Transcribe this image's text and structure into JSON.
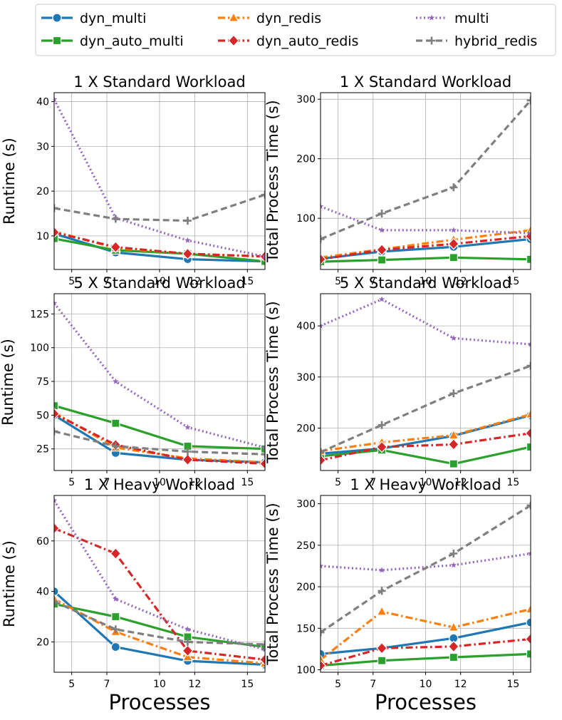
{
  "chart_data": [
    {
      "type": "line",
      "title": "1 X Standard Workload",
      "xlabel": "",
      "ylabel": "Runtime (s)",
      "xlim": [
        4,
        16
      ],
      "ylim": [
        2.5,
        42
      ],
      "xticks": [
        5,
        7,
        10,
        12,
        15
      ],
      "yticks": [
        10,
        20,
        30,
        40
      ],
      "x": [
        4,
        7.5,
        11.6,
        16
      ],
      "series": [
        {
          "name": "dyn_multi",
          "values": [
            10.5,
            6.3,
            4.8,
            4.3
          ]
        },
        {
          "name": "dyn_auto_multi",
          "values": [
            9.4,
            6.8,
            6.0,
            4.3
          ]
        },
        {
          "name": "dyn_redis",
          "values": [
            11.0,
            7.3,
            6.0,
            5.4
          ]
        },
        {
          "name": "dyn_auto_redis",
          "values": [
            10.8,
            7.5,
            6.0,
            5.4
          ]
        },
        {
          "name": "multi",
          "values": [
            40.5,
            14.0,
            9.0,
            5.4
          ]
        },
        {
          "name": "hybrid_redis",
          "values": [
            16.2,
            13.8,
            13.4,
            19.2
          ]
        }
      ]
    },
    {
      "type": "line",
      "title": "1 X Standard Workload",
      "xlabel": "",
      "ylabel": "Total Process Time (s)",
      "xlim": [
        4,
        16
      ],
      "ylim": [
        14,
        311
      ],
      "xticks": [
        5,
        7,
        10,
        12,
        15
      ],
      "yticks": [
        100,
        200,
        300
      ],
      "x": [
        4,
        7.5,
        11.6,
        16
      ],
      "series": [
        {
          "name": "dyn_multi",
          "values": [
            32,
            44,
            52,
            65
          ]
        },
        {
          "name": "dyn_auto_multi",
          "values": [
            27,
            30,
            34,
            31
          ]
        },
        {
          "name": "dyn_redis",
          "values": [
            34,
            48,
            64,
            80
          ]
        },
        {
          "name": "dyn_auto_redis",
          "values": [
            31,
            47,
            57,
            70
          ]
        },
        {
          "name": "multi",
          "values": [
            120,
            80,
            80,
            75
          ]
        },
        {
          "name": "hybrid_redis",
          "values": [
            65,
            108,
            152,
            298
          ]
        }
      ]
    },
    {
      "type": "line",
      "title": "5 X Standard Workload",
      "xlabel": "",
      "ylabel": "Runtime (s)",
      "xlim": [
        4,
        16
      ],
      "ylim": [
        9,
        140
      ],
      "xticks": [
        5,
        7,
        10,
        12,
        15
      ],
      "yticks": [
        25,
        50,
        75,
        100,
        125
      ],
      "x": [
        4,
        7.5,
        11.6,
        16
      ],
      "series": [
        {
          "name": "dyn_multi",
          "values": [
            50,
            22,
            17,
            15
          ]
        },
        {
          "name": "dyn_auto_multi",
          "values": [
            57,
            44,
            27,
            25
          ]
        },
        {
          "name": "dyn_redis",
          "values": [
            52,
            26,
            18,
            15
          ]
        },
        {
          "name": "dyn_auto_redis",
          "values": [
            51,
            28,
            17,
            14
          ]
        },
        {
          "name": "multi",
          "values": [
            133,
            75,
            41,
            26
          ]
        },
        {
          "name": "hybrid_redis",
          "values": [
            38,
            27,
            23,
            21
          ]
        }
      ]
    },
    {
      "type": "line",
      "title": "5 X Standard Workload",
      "xlabel": "",
      "ylabel": "Total Process Time (s)",
      "xlim": [
        4,
        16
      ],
      "ylim": [
        117,
        463
      ],
      "xticks": [
        5,
        7,
        10,
        12,
        15
      ],
      "yticks": [
        200,
        300,
        400
      ],
      "x": [
        4,
        7.5,
        11.6,
        16
      ],
      "series": [
        {
          "name": "dyn_multi",
          "values": [
            150,
            160,
            185,
            225
          ]
        },
        {
          "name": "dyn_auto_multi",
          "values": [
            145,
            157,
            130,
            163
          ]
        },
        {
          "name": "dyn_redis",
          "values": [
            155,
            172,
            186,
            227
          ]
        },
        {
          "name": "dyn_auto_redis",
          "values": [
            137,
            163,
            168,
            190
          ]
        },
        {
          "name": "multi",
          "values": [
            400,
            452,
            376,
            364
          ]
        },
        {
          "name": "hybrid_redis",
          "values": [
            153,
            206,
            268,
            322
          ]
        }
      ]
    },
    {
      "type": "line",
      "title": "1 X Heavy Workload",
      "xlabel": "Processes",
      "ylabel": "Runtime (s)",
      "xlim": [
        4,
        16
      ],
      "ylim": [
        8,
        78
      ],
      "xticks": [
        5,
        7,
        10,
        12,
        15
      ],
      "yticks": [
        20,
        40,
        60
      ],
      "x": [
        4,
        7.5,
        11.6,
        16
      ],
      "series": [
        {
          "name": "dyn_multi",
          "values": [
            40,
            18,
            12.5,
            11
          ]
        },
        {
          "name": "dyn_auto_multi",
          "values": [
            35,
            30,
            22,
            18
          ]
        },
        {
          "name": "dyn_redis",
          "values": [
            37,
            24,
            14,
            11.5
          ]
        },
        {
          "name": "dyn_auto_redis",
          "values": [
            65,
            55,
            16.5,
            13
          ]
        },
        {
          "name": "multi",
          "values": [
            76,
            37,
            25,
            17
          ]
        },
        {
          "name": "hybrid_redis",
          "values": [
            36,
            25,
            20,
            19
          ]
        }
      ]
    },
    {
      "type": "line",
      "title": "1 X Heavy Workload",
      "xlabel": "Processes",
      "ylabel": "Total Process Time (s)",
      "xlim": [
        4,
        16
      ],
      "ylim": [
        97,
        310
      ],
      "xticks": [
        5,
        7,
        10,
        12,
        15
      ],
      "yticks": [
        100,
        150,
        200,
        250,
        300
      ],
      "x": [
        4,
        7.5,
        11.6,
        16
      ],
      "series": [
        {
          "name": "dyn_multi",
          "values": [
            119,
            126,
            138,
            157
          ]
        },
        {
          "name": "dyn_auto_multi",
          "values": [
            105,
            111,
            115,
            119
          ]
        },
        {
          "name": "dyn_redis",
          "values": [
            112,
            170,
            151,
            173
          ]
        },
        {
          "name": "dyn_auto_redis",
          "values": [
            105,
            126,
            128,
            137
          ]
        },
        {
          "name": "multi",
          "values": [
            225,
            220,
            226,
            240
          ]
        },
        {
          "name": "hybrid_redis",
          "values": [
            145,
            195,
            240,
            298
          ]
        }
      ]
    }
  ],
  "legend": {
    "placement": "top-center",
    "entries": [
      {
        "name": "dyn_multi",
        "color": "#1f77b4",
        "marker": "circle",
        "dash": "solid"
      },
      {
        "name": "dyn_auto_multi",
        "color": "#2ca02c",
        "marker": "square",
        "dash": "solid"
      },
      {
        "name": "dyn_redis",
        "color": "#ff7f0e",
        "marker": "triangle",
        "dash": "dashdot"
      },
      {
        "name": "dyn_auto_redis",
        "color": "#d62728",
        "marker": "diamond",
        "dash": "dashdot"
      },
      {
        "name": "multi",
        "color": "#9467bd",
        "marker": "star",
        "dash": "dotted"
      },
      {
        "name": "hybrid_redis",
        "color": "#7f7f7f",
        "marker": "plus",
        "dash": "dashed"
      }
    ]
  }
}
